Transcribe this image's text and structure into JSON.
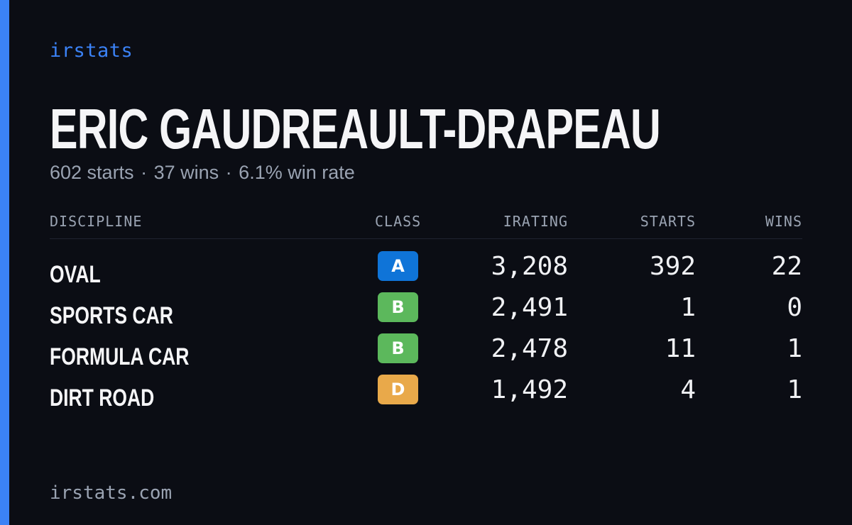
{
  "brand": "irstats",
  "driver": {
    "name": "ERIC GAUDREAULT-DRAPEAU",
    "starts_text": "602 starts",
    "wins_text": "37 wins",
    "winrate_text": "6.1% win rate",
    "separator": "·"
  },
  "table": {
    "headers": {
      "discipline": "DISCIPLINE",
      "class": "CLASS",
      "irating": "IRATING",
      "starts": "STARTS",
      "wins": "WINS"
    },
    "rows": [
      {
        "discipline": "OVAL",
        "class": "A",
        "class_color": "#0f74d8",
        "irating": "3,208",
        "starts": "392",
        "wins": "22"
      },
      {
        "discipline": "SPORTS CAR",
        "class": "B",
        "class_color": "#5cb85c",
        "irating": "2,491",
        "starts": "1",
        "wins": "0"
      },
      {
        "discipline": "FORMULA CAR",
        "class": "B",
        "class_color": "#5cb85c",
        "irating": "2,478",
        "starts": "11",
        "wins": "1"
      },
      {
        "discipline": "DIRT ROAD",
        "class": "D",
        "class_color": "#e9a94a",
        "irating": "1,492",
        "starts": "4",
        "wins": "1"
      }
    ]
  },
  "footer": "irstats.com",
  "colors": {
    "accent": "#3b82f6",
    "background": "#0b0d14",
    "muted": "#9aa3b2"
  }
}
